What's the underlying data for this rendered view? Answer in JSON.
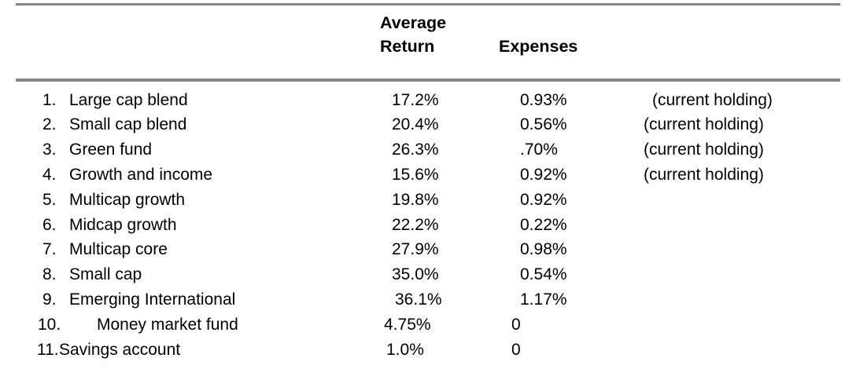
{
  "table": {
    "headers": {
      "avg_return_line1": "Average",
      "avg_return_line2": "Return",
      "expenses": "Expenses"
    },
    "rows": [
      {
        "num": "1.",
        "name": "Large cap blend",
        "avg_return": "17.2%",
        "expenses": "0.93%",
        "note": "(current holding)"
      },
      {
        "num": "2.",
        "name": "Small cap blend",
        "avg_return": "20.4%",
        "expenses": "0.56%",
        "note": "(current holding)"
      },
      {
        "num": "3.",
        "name": "Green fund",
        "avg_return": "26.3%",
        "expenses": ".70%",
        "note": "(current holding)"
      },
      {
        "num": "4.",
        "name": "Growth and income",
        "avg_return": "15.6%",
        "expenses": "0.92%",
        "note": "(current holding)"
      },
      {
        "num": "5.",
        "name": "Multicap growth",
        "avg_return": "19.8%",
        "expenses": "0.92%"
      },
      {
        "num": "6.",
        "name": "Midcap growth",
        "avg_return": "22.2%",
        "expenses": "0.22%"
      },
      {
        "num": "7.",
        "name": "Multicap core",
        "avg_return": "27.9%",
        "expenses": "0.98%"
      },
      {
        "num": "8.",
        "name": "Small cap",
        "avg_return": "35.0%",
        "expenses": "0.54%"
      },
      {
        "num": "9.",
        "name": "Emerging International",
        "avg_return": "36.1%",
        "expenses": "1.17%"
      },
      {
        "num": "10.",
        "name": "Money market fund",
        "avg_return": "4.75%",
        "expenses": "0"
      },
      {
        "num": "11.",
        "name": "Savings account",
        "avg_return": "1.0%",
        "expenses": "0"
      }
    ],
    "colors": {
      "rule": "#868686",
      "text": "#000000",
      "background": "#ffffff"
    }
  }
}
